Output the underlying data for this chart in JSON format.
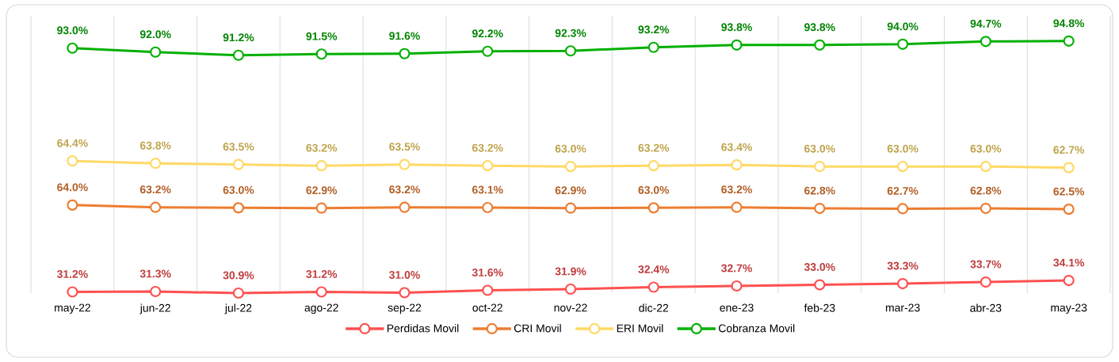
{
  "chart_data": {
    "type": "line",
    "categories": [
      "may-22",
      "jun-22",
      "jul-22",
      "ago-22",
      "sep-22",
      "oct-22",
      "nov-22",
      "dic-22",
      "ene-23",
      "feb-23",
      "mar-23",
      "abr-23",
      "may-23"
    ],
    "series": [
      {
        "name": "Perdidas Movil",
        "color": "#ff5050",
        "values": [
          31.2,
          31.3,
          30.9,
          31.2,
          31.0,
          31.6,
          31.9,
          32.4,
          32.7,
          33.0,
          33.3,
          33.7,
          34.1
        ],
        "value_labels": [
          "31.2%",
          "31.3%",
          "30.9%",
          "31.2%",
          "31.0%",
          "31.6%",
          "31.9%",
          "32.4%",
          "32.7%",
          "33.0%",
          "33.3%",
          "33.7%",
          "34.1%"
        ]
      },
      {
        "name": "CRI Movil",
        "color": "#ed7d31",
        "axis": "y2",
        "values": [
          64.0,
          63.2,
          63.0,
          62.9,
          63.2,
          63.1,
          62.9,
          63.0,
          63.2,
          62.8,
          62.7,
          62.8,
          62.5
        ],
        "value_labels": [
          "64.0%",
          "63.2%",
          "63.0%",
          "62.9%",
          "63.2%",
          "63.1%",
          "62.9%",
          "63.0%",
          "63.2%",
          "62.8%",
          "62.7%",
          "62.8%",
          "62.5%"
        ]
      },
      {
        "name": "ERI Movil",
        "color": "#ffd966",
        "values": [
          64.4,
          63.8,
          63.5,
          63.2,
          63.5,
          63.2,
          63.0,
          63.2,
          63.4,
          63.0,
          63.0,
          63.0,
          62.7
        ],
        "value_labels": [
          "64.4%",
          "63.8%",
          "63.5%",
          "63.2%",
          "63.5%",
          "63.2%",
          "63.0%",
          "63.2%",
          "63.4%",
          "63.0%",
          "63.0%",
          "63.0%",
          "62.7%"
        ]
      },
      {
        "name": "Cobranza Movil",
        "color": "#00b000",
        "values": [
          93.0,
          92.0,
          91.2,
          91.5,
          91.6,
          92.2,
          92.3,
          93.2,
          93.8,
          93.8,
          94.0,
          94.7,
          94.8
        ],
        "value_labels": [
          "93.0%",
          "92.0%",
          "91.2%",
          "91.5%",
          "91.6%",
          "92.2%",
          "92.3%",
          "93.2%",
          "93.8%",
          "93.8%",
          "94.0%",
          "94.7%",
          "94.8%"
        ]
      }
    ],
    "grid": "x",
    "marker": "circle",
    "tick_labels": "x",
    "legend": "bottom"
  }
}
